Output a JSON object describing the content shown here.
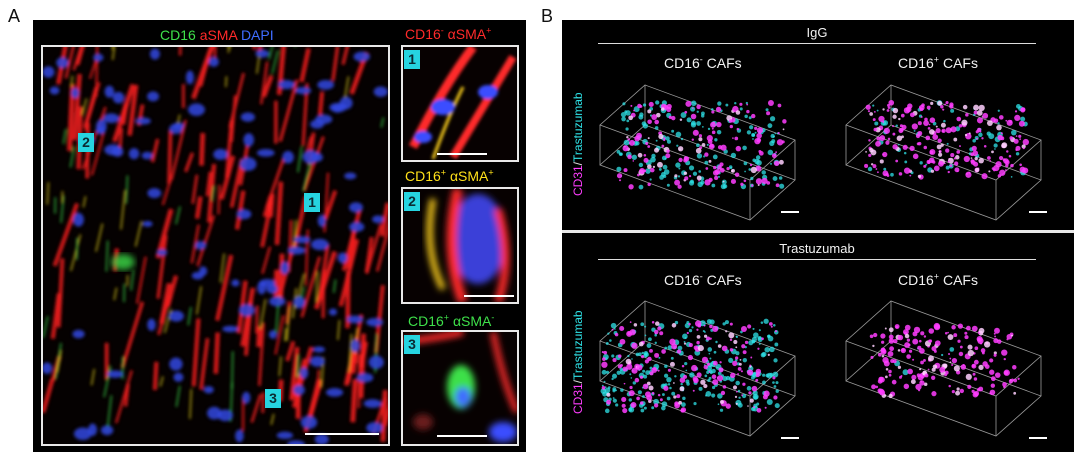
{
  "panel_a": {
    "letter": "A",
    "stain_title": {
      "cd16": "CD16",
      "asma": "aSMA",
      "dapi": "DAPI"
    },
    "main_badges": [
      "2",
      "1",
      "3"
    ],
    "insets": [
      {
        "badge": "1",
        "label_main": "CD16",
        "label_sup1": "-",
        "label_mid": " αSMA",
        "label_sup2": "+",
        "color": "#ff2a2a"
      },
      {
        "badge": "2",
        "label_main": "CD16",
        "label_sup1": "+",
        "label_mid": " αSMA",
        "label_sup2": "+",
        "color": "#ffe11a"
      },
      {
        "badge": "3",
        "label_main": "CD16",
        "label_sup1": "+",
        "label_mid": " αSMA",
        "label_sup2": "-",
        "color": "#3ee04a"
      }
    ]
  },
  "panel_b": {
    "letter": "B",
    "y_axis_label": {
      "part1": "CD31",
      "sep": "/",
      "part2": "Trastuzumab"
    },
    "rows": [
      {
        "condition": "IgG",
        "col1": {
          "main": "CD16",
          "sup": "-",
          "rest": " CAFs"
        },
        "col2": {
          "main": "CD16",
          "sup": "+",
          "rest": " CAFs"
        }
      },
      {
        "condition": "Trastuzumab",
        "col1": {
          "main": "CD16",
          "sup": "-",
          "rest": " CAFs"
        },
        "col2": {
          "main": "CD16",
          "sup": "+",
          "rest": " CAFs"
        }
      }
    ]
  },
  "colors": {
    "cd16": "#3ee04a",
    "asma": "#ff2a2a",
    "dapi": "#3f6dff",
    "cd31": "#ff3dff",
    "trastuzumab": "#2fe3e8"
  }
}
